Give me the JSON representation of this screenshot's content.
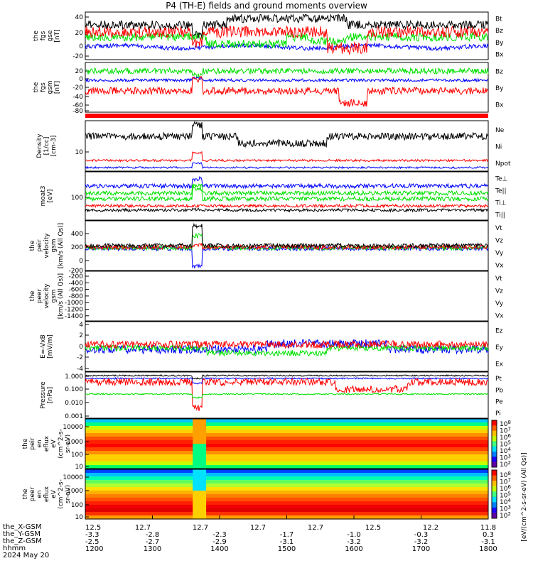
{
  "title": "P4 (TH-E) fields and ground moments overview",
  "colors": {
    "black": "#000000",
    "red": "#ff0000",
    "green": "#00e000",
    "blue": "#0000ff"
  },
  "panels": [
    {
      "id": "fgs",
      "ylabel": [
        "the",
        "fgs",
        "gse",
        "[nT]"
      ],
      "ticks": [
        "40",
        "20",
        "0",
        "-20"
      ],
      "legend": [
        {
          "text": "Bt",
          "color": "black"
        },
        {
          "text": "Bz",
          "color": "red"
        },
        {
          "text": "By",
          "color": "green"
        },
        {
          "text": "Bx",
          "color": "blue"
        }
      ]
    },
    {
      "id": "fgs_gsm",
      "ylabel": [
        "the",
        "fgs",
        "gsm",
        "[nT]"
      ],
      "ticks": [
        "20",
        "0",
        "-20",
        "-40",
        "-60",
        "-80"
      ],
      "legend": [
        {
          "text": "Bz",
          "color": "red"
        },
        {
          "text": "By",
          "color": "green"
        },
        {
          "text": "Bx",
          "color": "blue"
        }
      ]
    },
    {
      "id": "density",
      "ylabel": [
        "Density",
        "[1/cc]",
        "[cm-3]"
      ],
      "ticks": [
        "10"
      ],
      "legend": [
        {
          "text": "Ne",
          "color": "red"
        },
        {
          "text": "Ni",
          "color": "black"
        },
        {
          "text": "Npot",
          "color": "blue"
        }
      ]
    },
    {
      "id": "temp",
      "ylabel": [
        "moat3",
        "[eV]"
      ],
      "ticks": [
        "100"
      ],
      "legend": [
        {
          "text": "Te⊥",
          "color": "red"
        },
        {
          "text": "Te||",
          "color": "black"
        },
        {
          "text": "Ti⊥",
          "color": "green"
        },
        {
          "text": "Ti||",
          "color": "green"
        }
      ]
    },
    {
      "id": "peir_vel",
      "ylabel": [
        "the",
        "peir",
        "velocity",
        "gsm",
        "[km/s (All Qs)]"
      ],
      "ticks": [
        "400",
        "200",
        "0",
        "-200"
      ],
      "legend": [
        {
          "text": "Vt",
          "color": "black"
        },
        {
          "text": "Vz",
          "color": "red"
        },
        {
          "text": "Vy",
          "color": "green"
        },
        {
          "text": "Vx",
          "color": "blue"
        }
      ]
    },
    {
      "id": "peer_vel",
      "ylabel": [
        "the",
        "peer",
        "velocity",
        "gsm",
        "[km/s (All Qs)]"
      ],
      "ticks": [
        "-200",
        "-400",
        "-600",
        "-800",
        "-1000",
        "-1200",
        "-1400"
      ],
      "legend": [
        {
          "text": "Vt",
          "color": "black"
        },
        {
          "text": "Vz",
          "color": "red"
        },
        {
          "text": "Vy",
          "color": "green"
        },
        {
          "text": "Vx",
          "color": "blue"
        }
      ]
    },
    {
      "id": "efield",
      "ylabel": [
        "E=-VxB",
        "[mV/m]"
      ],
      "ticks": [
        "4",
        "2",
        "0",
        "-2",
        "-4"
      ],
      "legend": [
        {
          "text": "Ez",
          "color": "red"
        },
        {
          "text": "Ey",
          "color": "green"
        },
        {
          "text": "Ex",
          "color": "blue"
        }
      ]
    },
    {
      "id": "pressure",
      "ylabel": [
        "Pressure",
        "[nPa]"
      ],
      "ticks": [
        "1.000",
        "0.100",
        "0.010",
        "0.001"
      ],
      "legend": [
        {
          "text": "Pt",
          "color": "black"
        },
        {
          "text": "Pb",
          "color": "red"
        },
        {
          "text": "Pe",
          "color": "green"
        },
        {
          "text": "Pi",
          "color": "blue"
        }
      ]
    },
    {
      "id": "peir_spec",
      "ylabel": [
        "the",
        "peir",
        "en",
        "eflux",
        "eV",
        "(cm^2-s-",
        "sr-eV)"
      ],
      "ticks": [
        "10000",
        "1000",
        "100",
        "10"
      ],
      "legend": []
    },
    {
      "id": "peer_spec",
      "ylabel": [
        "the",
        "peer",
        "en",
        "eflux",
        "eV",
        "(cm^2-s-",
        "sr-eV)"
      ],
      "ticks": [
        "10000",
        "1000",
        "100",
        "10"
      ],
      "legend": []
    }
  ],
  "colorbar": {
    "ticks": [
      "10^8",
      "10^7",
      "10^6",
      "10^5",
      "10^4",
      "10^3",
      "10^2"
    ],
    "label": "[eV/(cm^2-s-sr-eV) (All Qs)]"
  },
  "xaxis": {
    "rows": [
      {
        "label": "the_X-GSM",
        "values": [
          "12.5",
          "12.7",
          "12.7",
          "12.7",
          "12.7",
          "12.5",
          "12.2",
          "11.8"
        ]
      },
      {
        "label": "the_Y-GSM",
        "values": [
          "-3.3",
          "-2.8",
          "-2.3",
          "-1.7",
          "-1.0",
          "-0.3",
          "0.3",
          ""
        ]
      },
      {
        "label": "the_Z-GSM",
        "values": [
          "-2.5",
          "-2.7",
          "-2.9",
          "-3.1",
          "-3.2",
          "-3.2",
          "-3.1",
          ""
        ]
      },
      {
        "label": "hhmm",
        "values": [
          "1200",
          "1300",
          "1400",
          "1500",
          "1600",
          "1700",
          "1800",
          ""
        ]
      }
    ],
    "date": "2024 May 20"
  }
}
